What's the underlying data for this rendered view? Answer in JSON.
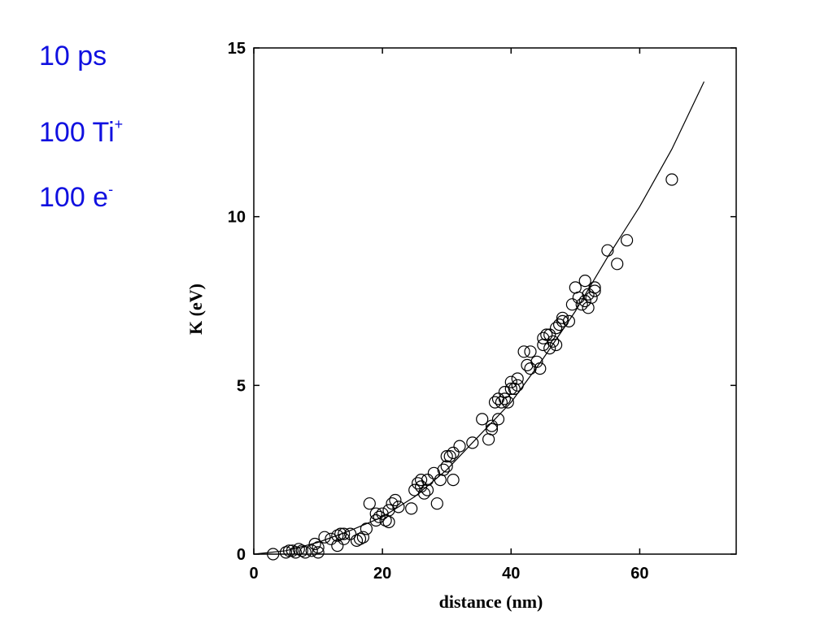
{
  "labels": {
    "time": "10 ps",
    "ions_num": "100 Ti",
    "ions_sup": "+",
    "elec_num": "100 e",
    "elec_sup": "-"
  },
  "chart_data": {
    "type": "scatter",
    "xlabel": "distance (nm)",
    "ylabel": "K  (eV)",
    "xlim": [
      0,
      75
    ],
    "ylim": [
      0,
      15
    ],
    "xticks": [
      0,
      20,
      40,
      60
    ],
    "yticks": [
      0,
      5,
      10,
      15
    ],
    "grid": false,
    "series": [
      {
        "kind": "markers",
        "marker": "open-circle",
        "x": [
          3,
          5,
          5.5,
          6,
          6.5,
          7,
          7.5,
          8,
          9,
          9.5,
          10,
          10,
          11,
          12,
          13,
          13,
          13.5,
          14,
          14,
          15,
          16,
          16.5,
          17,
          17.5,
          18,
          19,
          19,
          19.5,
          20,
          20.5,
          21,
          21,
          21.5,
          22,
          22.5,
          24.5,
          25,
          25.5,
          26,
          26,
          26.5,
          27,
          27,
          28,
          28.5,
          29,
          29.5,
          30,
          30,
          30.5,
          31,
          31,
          32,
          34,
          35.5,
          36.5,
          37,
          37,
          37.5,
          38,
          38,
          38.5,
          39,
          39,
          39.5,
          40,
          40,
          40.5,
          41,
          41,
          42,
          42.5,
          43,
          43,
          44,
          44.5,
          45,
          45,
          45.5,
          46,
          46,
          46.5,
          47,
          47,
          47.5,
          48,
          48,
          49,
          49.5,
          50,
          50.5,
          51,
          51.5,
          51.5,
          52,
          52,
          52.5,
          53,
          53,
          55,
          56.5,
          58,
          65
        ],
        "y": [
          0,
          0.05,
          0.1,
          0.1,
          0.05,
          0.15,
          0.1,
          0.05,
          0.1,
          0.3,
          0.2,
          0.05,
          0.5,
          0.45,
          0.25,
          0.55,
          0.6,
          0.45,
          0.6,
          0.6,
          0.4,
          0.45,
          0.5,
          0.75,
          1.5,
          1,
          1.2,
          1.1,
          1.2,
          1,
          0.95,
          1.3,
          1.5,
          1.6,
          1.4,
          1.35,
          1.9,
          2.1,
          2,
          2.2,
          1.8,
          1.9,
          2.2,
          2.4,
          1.5,
          2.2,
          2.5,
          2.6,
          2.9,
          2.9,
          2.2,
          3,
          3.2,
          3.3,
          4,
          3.4,
          3.7,
          3.8,
          4.5,
          4.0,
          4.6,
          4.5,
          4.6,
          4.8,
          4.5,
          4.9,
          5.1,
          4.9,
          5.2,
          5,
          6,
          5.6,
          6,
          5.5,
          5.7,
          5.5,
          6.4,
          6.2,
          6.5,
          6.5,
          6.1,
          6.3,
          6.7,
          6.2,
          6.8,
          7,
          6.9,
          6.9,
          7.4,
          7.9,
          7.6,
          7.4,
          7.5,
          8.1,
          7.3,
          7.7,
          7.6,
          7.9,
          7.8,
          9,
          8.6,
          9.3,
          11.1
        ]
      },
      {
        "kind": "fit-line",
        "x": [
          0,
          5,
          10,
          15,
          20,
          25,
          30,
          35,
          40,
          45,
          50,
          55,
          60,
          65,
          70
        ],
        "y": [
          0,
          0.1,
          0.35,
          0.7,
          1.1,
          1.7,
          2.5,
          3.5,
          4.5,
          5.8,
          7.2,
          8.8,
          10.3,
          12,
          14
        ]
      }
    ]
  }
}
